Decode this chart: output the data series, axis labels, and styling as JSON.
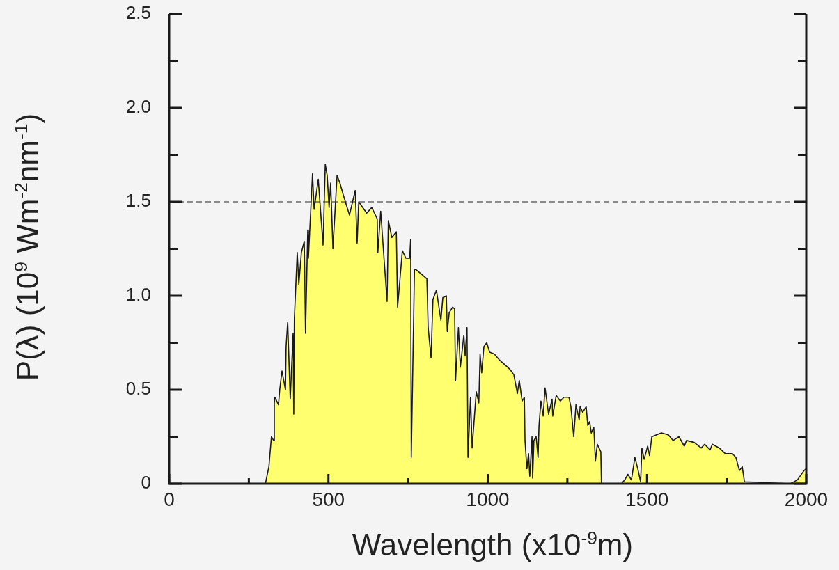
{
  "chart_data": {
    "type": "area",
    "xlabel": "Wavelength (x10$^{-9}$m)",
    "ylabel": "P(λ)  (10$^{9}$ Wm$^{-2}$nm$^{-1}$)",
    "xlim": [
      0,
      2000
    ],
    "ylim": [
      0,
      2.5
    ],
    "xticks": [
      0,
      {
        "value": 250,
        "label": null
      },
      500,
      {
        "value": 750,
        "label": null
      },
      1000,
      {
        "value": 1250,
        "label": null
      },
      1500,
      {
        "value": 1750,
        "label": null
      },
      2000
    ],
    "yticks": [
      0,
      {
        "value": 0.25,
        "label": null
      },
      0.5,
      {
        "value": 0.75,
        "label": null
      },
      {
        "value": 1,
        "label": "1.0"
      },
      {
        "value": 1.25,
        "label": null
      },
      1.5,
      {
        "value": 1.75,
        "label": null
      },
      {
        "value": 2,
        "label": "2.0"
      },
      {
        "value": 2.25,
        "label": null
      },
      2.5
    ],
    "grid": false,
    "legend": false,
    "marker": "none",
    "line_style": "solid",
    "ref_lines": [
      {
        "axis": "y",
        "value": 1.5,
        "label": null,
        "color": "#222222",
        "line_style": "dashed"
      }
    ],
    "series": [
      {
        "color": "#ffff70",
        "x": [
          302,
          313,
          321,
          328,
          330,
          332,
          343,
          347,
          354,
          365,
          367,
          372,
          380,
          389,
          391,
          393,
          402,
          407,
          415,
          424,
          428,
          435,
          437,
          446,
          450,
          455,
          468,
          483,
          490,
          496,
          502,
          507,
          514,
          527,
          536,
          546,
          555,
          566,
          584,
          590,
          595,
          620,
          636,
          653,
          655,
          664,
          684,
          688,
          699,
          713,
          717,
          732,
          743,
          755,
          758,
          760,
          770,
          774,
          796,
          809,
          813,
          822,
          828,
          839,
          853,
          859,
          870,
          873,
          879,
          890,
          896,
          899,
          908,
          914,
          925,
          929,
          935,
          938,
          946,
          951,
          964,
          972,
          976,
          981,
          988,
          997,
          1006,
          1021,
          1036,
          1049,
          1069,
          1082,
          1093,
          1099,
          1108,
          1115,
          1117,
          1123,
          1128,
          1132,
          1139,
          1141,
          1145,
          1152,
          1158,
          1161,
          1167,
          1174,
          1180,
          1191,
          1202,
          1204,
          1215,
          1228,
          1239,
          1255,
          1261,
          1270,
          1277,
          1287,
          1290,
          1298,
          1309,
          1314,
          1320,
          1325,
          1333,
          1338,
          1344,
          1355,
          1357,
          1420,
          1430,
          1440,
          1451,
          1462,
          1471,
          1480,
          1484,
          1491,
          1502,
          1508,
          1515,
          1530,
          1545,
          1567,
          1582,
          1600,
          1617,
          1624,
          1648,
          1670,
          1681,
          1698,
          1705,
          1727,
          1746,
          1768,
          1779,
          1790,
          1799,
          1806,
          1950,
          1972,
          1993,
          2000
        ],
        "values": [
          0,
          0.09,
          0.25,
          0.23,
          0.43,
          0.46,
          0.42,
          0.5,
          0.6,
          0.5,
          0.73,
          0.86,
          0.45,
          0.8,
          0.37,
          0.88,
          1.23,
          1.06,
          1.23,
          1.29,
          0.8,
          1.35,
          1.2,
          1.51,
          1.65,
          1.46,
          1.62,
          1.27,
          1.7,
          1.64,
          1.47,
          1.6,
          1.25,
          1.64,
          1.6,
          1.54,
          1.49,
          1.43,
          1.56,
          1.28,
          1.5,
          1.44,
          1.47,
          1.41,
          1.23,
          1.45,
          0.97,
          1.4,
          1.31,
          1.34,
          0.94,
          1.24,
          1.2,
          1.2,
          1.3,
          0.14,
          1.14,
          1.14,
          1.11,
          1.09,
          0.83,
          0.67,
          0.98,
          1.03,
          0.87,
          0.99,
          1,
          0.81,
          0.91,
          0.94,
          0.93,
          0.55,
          0.83,
          0.62,
          0.79,
          0.68,
          0.83,
          0.14,
          0.46,
          0.19,
          0.49,
          0.43,
          0.69,
          0.59,
          0.73,
          0.75,
          0.7,
          0.69,
          0.66,
          0.64,
          0.61,
          0.58,
          0.48,
          0.55,
          0.44,
          0.46,
          0.23,
          0.08,
          0.16,
          0.04,
          0.25,
          0.03,
          0.23,
          0.25,
          0.14,
          0.31,
          0.44,
          0.36,
          0.51,
          0.37,
          0.45,
          0.36,
          0.47,
          0.44,
          0.46,
          0.46,
          0.41,
          0.25,
          0.42,
          0.34,
          0.41,
          0.38,
          0.41,
          0.31,
          0.33,
          0.27,
          0.3,
          0.12,
          0.21,
          0.17,
          0,
          0,
          0.02,
          0.05,
          0.02,
          0.14,
          0.08,
          0.01,
          0.19,
          0.13,
          0.2,
          0.15,
          0.25,
          0.26,
          0.27,
          0.26,
          0.23,
          0.25,
          0.2,
          0.23,
          0.22,
          0.19,
          0.21,
          0.18,
          0.21,
          0.19,
          0.16,
          0.16,
          0.14,
          0.07,
          0.09,
          0.01,
          0,
          0.02,
          0.07,
          0.08
        ]
      }
    ]
  }
}
